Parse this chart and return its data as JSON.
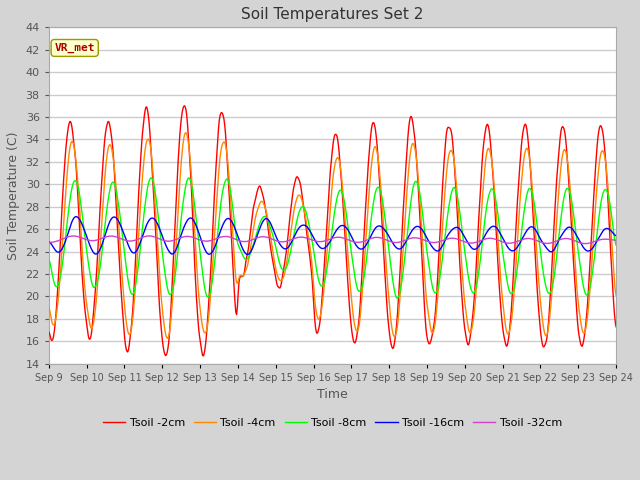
{
  "title": "Soil Temperatures Set 2",
  "xlabel": "Time",
  "ylabel": "Soil Temperature (C)",
  "ylim": [
    14,
    44
  ],
  "yticks": [
    14,
    16,
    18,
    20,
    22,
    24,
    26,
    28,
    30,
    32,
    34,
    36,
    38,
    40,
    42,
    44
  ],
  "annotation": "VR_met",
  "colors": {
    "Tsoil -2cm": "#ff0000",
    "Tsoil -4cm": "#ff8800",
    "Tsoil -8cm": "#00ff00",
    "Tsoil -16cm": "#0000ff",
    "Tsoil -32cm": "#cc44cc"
  },
  "x_labels": [
    "Sep 9",
    "Sep 10",
    "Sep 11",
    "Sep 12",
    "Sep 13",
    "Sep 14",
    "Sep 15",
    "Sep 16",
    "Sep 17",
    "Sep 18",
    "Sep 19",
    "Sep 20",
    "Sep 21",
    "Sep 22",
    "Sep 23",
    "Sep 24"
  ],
  "n_days": 15,
  "pts_per_day": 48,
  "fig_bg": "#d4d4d4",
  "plot_bg": "#ffffff",
  "grid_color": "#cccccc"
}
